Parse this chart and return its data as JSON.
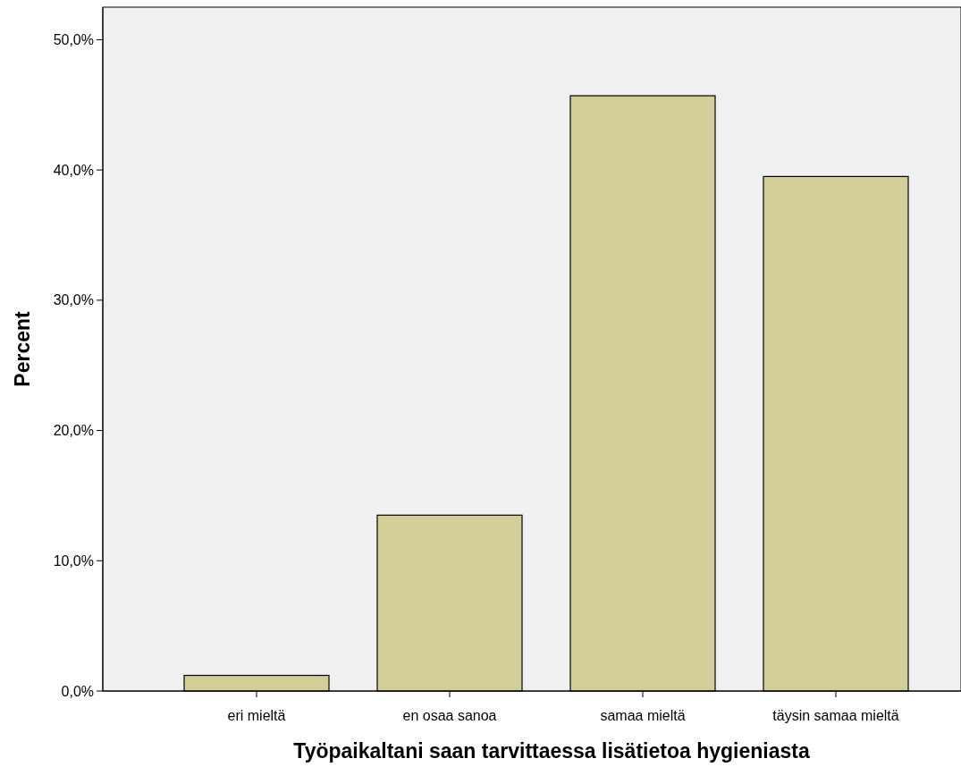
{
  "chart_data": {
    "type": "bar",
    "xlabel": "Työpaikaltani saan tarvittaessa lisätietoa hygieniasta",
    "ylabel": "Percent",
    "categories": [
      "eri mieltä",
      "en osaa sanoa",
      "samaa mieltä",
      "täysin samaa mieltä"
    ],
    "values": [
      1.2,
      13.5,
      45.7,
      39.5
    ],
    "color": "#d3ce97",
    "ylim": [
      0,
      52.5
    ],
    "yticks": [
      {
        "value": 0,
        "label": "0,0%"
      },
      {
        "value": 10,
        "label": "10,0%"
      },
      {
        "value": 20,
        "label": "20,0%"
      },
      {
        "value": 30,
        "label": "30,0%"
      },
      {
        "value": 40,
        "label": "40,0%"
      },
      {
        "value": 50,
        "label": "50,0%"
      }
    ],
    "grid": false
  }
}
